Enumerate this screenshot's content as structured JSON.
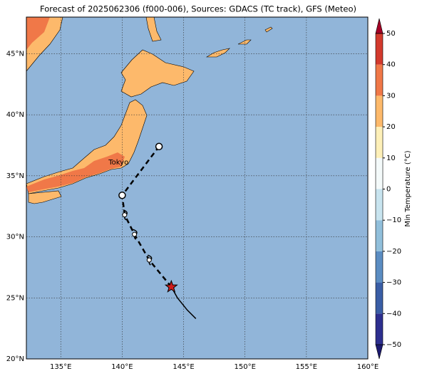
{
  "chart_data": {
    "type": "map",
    "title": "Forecast of 2025062306 (f000-006), Sources: GDACS (TC track), GFS (Meteo)",
    "xlim": [
      132.2,
      160
    ],
    "ylim": [
      20,
      48
    ],
    "xticks": [
      {
        "value": 135,
        "label": "135°E"
      },
      {
        "value": 140,
        "label": "140°E"
      },
      {
        "value": 145,
        "label": "145°E"
      },
      {
        "value": 150,
        "label": "150°E"
      },
      {
        "value": 155,
        "label": "155°E"
      },
      {
        "value": 160,
        "label": "160°E"
      }
    ],
    "yticks": [
      {
        "value": 20,
        "label": "20°N"
      },
      {
        "value": 25,
        "label": "25°N"
      },
      {
        "value": 30,
        "label": "30°N"
      },
      {
        "value": 35,
        "label": "35°N"
      },
      {
        "value": 40,
        "label": "40°N"
      },
      {
        "value": 45,
        "label": "45°N"
      }
    ],
    "grid": true,
    "ocean_color": "#91b5d9",
    "colorbar": {
      "label": "Min Temperature (°C)",
      "lim": [
        -50,
        50
      ],
      "ticks": [
        {
          "value": -50,
          "label": "−50"
        },
        {
          "value": -40,
          "label": "−40"
        },
        {
          "value": -30,
          "label": "−30"
        },
        {
          "value": -20,
          "label": "−20"
        },
        {
          "value": -10,
          "label": "−10"
        },
        0,
        10,
        20,
        30,
        40,
        50
      ],
      "colors": [
        "#2d2f8f",
        "#3a5ea6",
        "#5b8dc2",
        "#91bfdb",
        "#c8e4ef",
        "#f4fafa",
        "#fef0b8",
        "#fdb96b",
        "#f07848",
        "#d33a2d"
      ],
      "under_color": "#1c1a70",
      "over_color": "#a50026"
    },
    "past_track": {
      "lon": [
        146,
        145.3,
        144.5,
        144
      ],
      "lat": [
        23.3,
        24.0,
        25.0,
        25.9
      ]
    },
    "forecast_track": {
      "lon": [
        144,
        142.2,
        141,
        140.2,
        140,
        143
      ],
      "lat": [
        25.9,
        28.1,
        30.2,
        31.8,
        33.4,
        37.4
      ],
      "markers": [
        "star",
        "storm",
        "storm",
        "storm",
        "circle",
        "circle"
      ]
    },
    "city": {
      "name": "Tokyo",
      "lon": 139.7,
      "lat": 35.7
    }
  }
}
